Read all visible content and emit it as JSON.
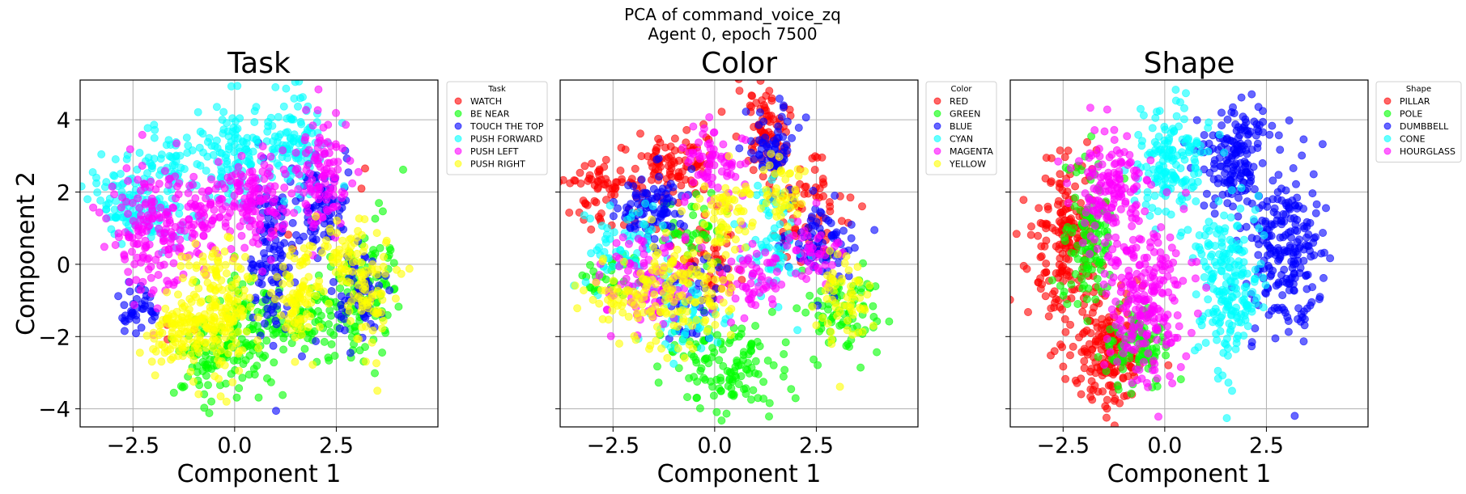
{
  "figure": {
    "suptitle_line1": "PCA of command_voice_zq",
    "suptitle_line2": "Agent 0, epoch 7500"
  },
  "chart_data": [
    {
      "type": "scatter",
      "title": "Task",
      "xlabel": "Component 1",
      "ylabel": "Component 2",
      "xlim": [
        -3.8,
        5.0
      ],
      "ylim": [
        -4.5,
        5.1
      ],
      "xticks": [
        -2.5,
        0.0,
        2.5
      ],
      "xtick_labels": [
        "−2.5",
        "0.0",
        "2.5"
      ],
      "yticks": [
        -4,
        -2,
        0,
        2,
        4
      ],
      "ytick_labels": [
        "−4",
        "−2",
        "0",
        "2",
        "4"
      ],
      "grid": true,
      "legend_title": "Task",
      "legend_position": "outside-right",
      "series": [
        {
          "name": "WATCH",
          "color": "#ff0000",
          "clusters": [
            {
              "c": [
                -1.7,
                -1.9
              ],
              "s": [
                0.5,
                0.4
              ],
              "n": 3
            },
            {
              "c": [
                3.3,
                2.4
              ],
              "s": [
                0.2,
                0.2
              ],
              "n": 2
            },
            {
              "c": [
                1.2,
                0.9
              ],
              "s": [
                0.3,
                0.3
              ],
              "n": 3
            }
          ]
        },
        {
          "name": "BE NEAR",
          "color": "#00ff00",
          "clusters": [
            {
              "c": [
                0.4,
                -2.0
              ],
              "s": [
                0.5,
                0.8
              ],
              "n": 110
            },
            {
              "c": [
                -0.8,
                -2.5
              ],
              "s": [
                0.4,
                0.6
              ],
              "n": 60
            },
            {
              "c": [
                3.2,
                -0.8
              ],
              "s": [
                0.45,
                1.0
              ],
              "n": 110
            },
            {
              "c": [
                1.9,
                -1.6
              ],
              "s": [
                0.4,
                0.5
              ],
              "n": 60
            }
          ]
        },
        {
          "name": "TOUCH THE TOP",
          "color": "#0000ff",
          "clusters": [
            {
              "c": [
                0.9,
                0.2
              ],
              "s": [
                0.3,
                1.3
              ],
              "n": 110
            },
            {
              "c": [
                2.1,
                1.6
              ],
              "s": [
                0.35,
                0.6
              ],
              "n": 80
            },
            {
              "c": [
                3.1,
                -0.8
              ],
              "s": [
                0.35,
                0.6
              ],
              "n": 60
            },
            {
              "c": [
                -2.3,
                -1.3
              ],
              "s": [
                0.3,
                0.4
              ],
              "n": 40
            }
          ]
        },
        {
          "name": "PUSH FORWARD",
          "color": "#00ffff",
          "clusters": [
            {
              "c": [
                -2.3,
                1.8
              ],
              "s": [
                0.7,
                0.6
              ],
              "n": 150
            },
            {
              "c": [
                0.0,
                2.9
              ],
              "s": [
                0.35,
                0.7
              ],
              "n": 110
            },
            {
              "c": [
                1.5,
                3.4
              ],
              "s": [
                0.35,
                0.7
              ],
              "n": 110
            },
            {
              "c": [
                -1.6,
                2.9
              ],
              "s": [
                0.4,
                0.4
              ],
              "n": 40
            }
          ]
        },
        {
          "name": "PUSH LEFT",
          "color": "#ff00ff",
          "clusters": [
            {
              "c": [
                -2.0,
                0.9
              ],
              "s": [
                0.6,
                0.9
              ],
              "n": 170
            },
            {
              "c": [
                0.5,
                1.8
              ],
              "s": [
                0.45,
                0.7
              ],
              "n": 120
            },
            {
              "c": [
                2.2,
                2.4
              ],
              "s": [
                0.3,
                0.9
              ],
              "n": 100
            },
            {
              "c": [
                -0.7,
                1.2
              ],
              "s": [
                0.35,
                0.6
              ],
              "n": 60
            }
          ]
        },
        {
          "name": "PUSH RIGHT",
          "color": "#ffff00",
          "clusters": [
            {
              "c": [
                -0.4,
                -1.3
              ],
              "s": [
                0.45,
                0.9
              ],
              "n": 190
            },
            {
              "c": [
                -1.5,
                -1.9
              ],
              "s": [
                0.45,
                0.5
              ],
              "n": 90
            },
            {
              "c": [
                1.6,
                -0.9
              ],
              "s": [
                0.3,
                0.8
              ],
              "n": 90
            },
            {
              "c": [
                3.3,
                -0.9
              ],
              "s": [
                0.35,
                0.9
              ],
              "n": 80
            },
            {
              "c": [
                2.7,
                0.3
              ],
              "s": [
                0.25,
                0.4
              ],
              "n": 40
            }
          ]
        }
      ]
    },
    {
      "type": "scatter",
      "title": "Color",
      "xlabel": "Component 1",
      "ylabel": "",
      "xlim": [
        -3.8,
        5.0
      ],
      "ylim": [
        -4.5,
        5.1
      ],
      "xticks": [
        -2.5,
        0.0,
        2.5
      ],
      "xtick_labels": [
        "−2.5",
        "0.0",
        "2.5"
      ],
      "yticks": [
        -4,
        -2,
        0,
        2,
        4
      ],
      "ytick_labels": [],
      "grid": true,
      "legend_title": "Color",
      "legend_position": "outside-right",
      "series": [
        {
          "name": "RED",
          "color": "#ff0000",
          "clusters": [
            {
              "c": [
                -2.6,
                2.1
              ],
              "s": [
                0.55,
                0.5
              ],
              "n": 80
            },
            {
              "c": [
                -1.0,
                2.8
              ],
              "s": [
                0.5,
                0.5
              ],
              "n": 90
            },
            {
              "c": [
                1.3,
                3.7
              ],
              "s": [
                0.35,
                0.6
              ],
              "n": 80
            },
            {
              "c": [
                2.3,
                1.4
              ],
              "s": [
                0.5,
                0.7
              ],
              "n": 80
            },
            {
              "c": [
                -0.2,
                0.2
              ],
              "s": [
                0.5,
                0.5
              ],
              "n": 50
            }
          ]
        },
        {
          "name": "GREEN",
          "color": "#00ff00",
          "clusters": [
            {
              "c": [
                0.3,
                -2.8
              ],
              "s": [
                0.7,
                0.6
              ],
              "n": 130
            },
            {
              "c": [
                3.2,
                -1.4
              ],
              "s": [
                0.45,
                0.6
              ],
              "n": 80
            },
            {
              "c": [
                -0.4,
                1.0
              ],
              "s": [
                0.45,
                0.5
              ],
              "n": 40
            },
            {
              "c": [
                -2.6,
                -0.3
              ],
              "s": [
                0.4,
                0.4
              ],
              "n": 30
            }
          ]
        },
        {
          "name": "BLUE",
          "color": "#0000ff",
          "clusters": [
            {
              "c": [
                -1.6,
                1.6
              ],
              "s": [
                0.5,
                0.5
              ],
              "n": 90
            },
            {
              "c": [
                1.4,
                3.3
              ],
              "s": [
                0.35,
                0.5
              ],
              "n": 60
            },
            {
              "c": [
                2.6,
                0.6
              ],
              "s": [
                0.45,
                0.6
              ],
              "n": 80
            },
            {
              "c": [
                -0.6,
                -0.9
              ],
              "s": [
                0.4,
                0.6
              ],
              "n": 50
            }
          ]
        },
        {
          "name": "CYAN",
          "color": "#00ffff",
          "clusters": [
            {
              "c": [
                -2.2,
                0.4
              ],
              "s": [
                0.6,
                0.6
              ],
              "n": 70
            },
            {
              "c": [
                1.4,
                0.6
              ],
              "s": [
                0.4,
                0.9
              ],
              "n": 70
            },
            {
              "c": [
                -0.6,
                -1.6
              ],
              "s": [
                0.5,
                0.5
              ],
              "n": 50
            }
          ]
        },
        {
          "name": "MAGENTA",
          "color": "#ff00ff",
          "clusters": [
            {
              "c": [
                -1.6,
                -0.6
              ],
              "s": [
                0.6,
                0.7
              ],
              "n": 100
            },
            {
              "c": [
                0.0,
                2.7
              ],
              "s": [
                0.4,
                0.5
              ],
              "n": 70
            },
            {
              "c": [
                1.0,
                -0.5
              ],
              "s": [
                0.4,
                0.6
              ],
              "n": 60
            },
            {
              "c": [
                2.5,
                0.3
              ],
              "s": [
                0.3,
                0.5
              ],
              "n": 40
            }
          ]
        },
        {
          "name": "YELLOW",
          "color": "#ffff00",
          "clusters": [
            {
              "c": [
                -0.8,
                -0.8
              ],
              "s": [
                0.7,
                0.8
              ],
              "n": 140
            },
            {
              "c": [
                0.4,
                1.4
              ],
              "s": [
                0.4,
                0.5
              ],
              "n": 60
            },
            {
              "c": [
                3.2,
                -1.0
              ],
              "s": [
                0.35,
                0.6
              ],
              "n": 60
            },
            {
              "c": [
                1.7,
                2.0
              ],
              "s": [
                0.3,
                0.5
              ],
              "n": 40
            },
            {
              "c": [
                -2.4,
                -0.8
              ],
              "s": [
                0.5,
                0.5
              ],
              "n": 40
            }
          ]
        }
      ]
    },
    {
      "type": "scatter",
      "title": "Shape",
      "xlabel": "Component 1",
      "ylabel": "",
      "xlim": [
        -3.8,
        5.0
      ],
      "ylim": [
        -4.5,
        5.1
      ],
      "xticks": [
        -2.5,
        0.0,
        2.5
      ],
      "xtick_labels": [
        "−2.5",
        "0.0",
        "2.5"
      ],
      "yticks": [
        -4,
        -2,
        0,
        2,
        4
      ],
      "ytick_labels": [],
      "grid": true,
      "legend_title": "Shape",
      "legend_position": "outside-right",
      "series": [
        {
          "name": "PILLAR",
          "color": "#ff0000",
          "clusters": [
            {
              "c": [
                -2.4,
                0.7
              ],
              "s": [
                0.45,
                1.1
              ],
              "n": 190
            },
            {
              "c": [
                -1.4,
                -2.4
              ],
              "s": [
                0.5,
                0.8
              ],
              "n": 170
            }
          ]
        },
        {
          "name": "POLE",
          "color": "#00ff00",
          "clusters": [
            {
              "c": [
                -1.9,
                0.6
              ],
              "s": [
                0.3,
                1.1
              ],
              "n": 120
            },
            {
              "c": [
                -0.7,
                -2.2
              ],
              "s": [
                0.4,
                0.6
              ],
              "n": 100
            }
          ]
        },
        {
          "name": "DUMBBELL",
          "color": "#0000ff",
          "clusters": [
            {
              "c": [
                1.7,
                3.1
              ],
              "s": [
                0.4,
                0.8
              ],
              "n": 160
            },
            {
              "c": [
                3.0,
                0.2
              ],
              "s": [
                0.45,
                1.2
              ],
              "n": 220
            }
          ]
        },
        {
          "name": "CONE",
          "color": "#00ffff",
          "clusters": [
            {
              "c": [
                0.2,
                2.8
              ],
              "s": [
                0.45,
                0.8
              ],
              "n": 160
            },
            {
              "c": [
                1.6,
                -0.5
              ],
              "s": [
                0.45,
                1.1
              ],
              "n": 200
            }
          ]
        },
        {
          "name": "HOURGLASS",
          "color": "#ff00ff",
          "clusters": [
            {
              "c": [
                -1.4,
                1.9
              ],
              "s": [
                0.45,
                0.9
              ],
              "n": 140
            },
            {
              "c": [
                -0.5,
                -0.9
              ],
              "s": [
                0.5,
                1.2
              ],
              "n": 230
            }
          ]
        }
      ]
    }
  ]
}
